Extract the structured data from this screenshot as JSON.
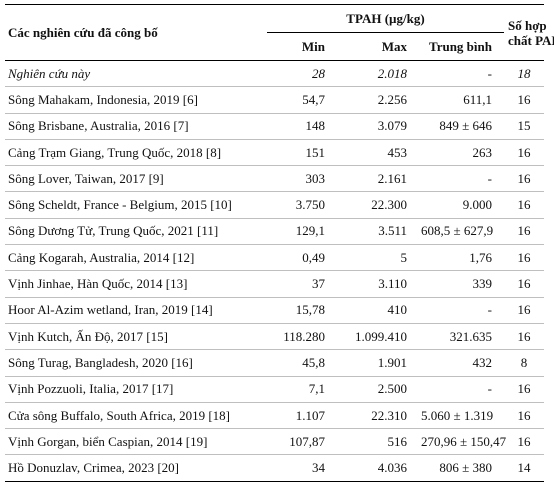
{
  "header": {
    "study_col": "Các nghiên cứu đã công bố",
    "tpah_group": "TPAH (µg/kg)",
    "min": "Min",
    "max": "Max",
    "avg": "Trung bình",
    "num_pah_line1": "Số hợp",
    "num_pah_line2": "chất PAH"
  },
  "rows": [
    {
      "study": "Nghiên cứu này",
      "min": "28",
      "max": "2.018",
      "avg": "-",
      "n": "18"
    },
    {
      "study": "Sông Mahakam, Indonesia, 2019 [6]",
      "min": "54,7",
      "max": "2.256",
      "avg": "611,1",
      "n": "16"
    },
    {
      "study": "Sông Brisbane, Australia, 2016 [7]",
      "min": "148",
      "max": "3.079",
      "avg": "849 ± 646",
      "n": "15"
    },
    {
      "study": "Cảng Trạm Giang, Trung Quốc, 2018 [8]",
      "min": "151",
      "max": "453",
      "avg": "263",
      "n": "16"
    },
    {
      "study": "Sông Lover, Taiwan, 2017 [9]",
      "min": "303",
      "max": "2.161",
      "avg": "-",
      "n": "16"
    },
    {
      "study": "Sông Scheldt, France - Belgium, 2015 [10]",
      "min": "3.750",
      "max": "22.300",
      "avg": "9.000",
      "n": "16"
    },
    {
      "study": "Sông Dương Tử, Trung Quốc, 2021 [11]",
      "min": "129,1",
      "max": "3.511",
      "avg": "608,5 ± 627,9",
      "n": "16"
    },
    {
      "study": "Cảng Kogarah, Australia, 2014 [12]",
      "min": "0,49",
      "max": "5",
      "avg": "1,76",
      "n": "16"
    },
    {
      "study": "Vịnh Jinhae, Hàn Quốc, 2014 [13]",
      "min": "37",
      "max": "3.110",
      "avg": "339",
      "n": "16"
    },
    {
      "study": "Hoor Al-Azim wetland, Iran, 2019 [14]",
      "min": "15,78",
      "max": "410",
      "avg": "-",
      "n": "16"
    },
    {
      "study": "Vịnh Kutch, Ấn Độ, 2017 [15]",
      "min": "118.280",
      "max": "1.099.410",
      "avg": "321.635",
      "n": "16"
    },
    {
      "study": "Sông Turag, Bangladesh, 2020 [16]",
      "min": "45,8",
      "max": "1.901",
      "avg": "432",
      "n": "8"
    },
    {
      "study": "Vịnh Pozzuoli, Italia, 2017 [17]",
      "min": "7,1",
      "max": "2.500",
      "avg": "-",
      "n": "16"
    },
    {
      "study": "Cửa sông Buffalo, South Africa, 2019 [18]",
      "min": "1.107",
      "max": "22.310",
      "avg": "5.060 ± 1.319",
      "n": "16"
    },
    {
      "study": "Vịnh Gorgan, biển Caspian, 2014 [19]",
      "min": "107,87",
      "max": "516",
      "avg": "270,96 ± 150,47",
      "n": "16"
    },
    {
      "study": "Hồ Donuzlav, Crimea, 2023 [20]",
      "min": "34",
      "max": "4.036",
      "avg": "806 ± 380",
      "n": "14"
    }
  ]
}
